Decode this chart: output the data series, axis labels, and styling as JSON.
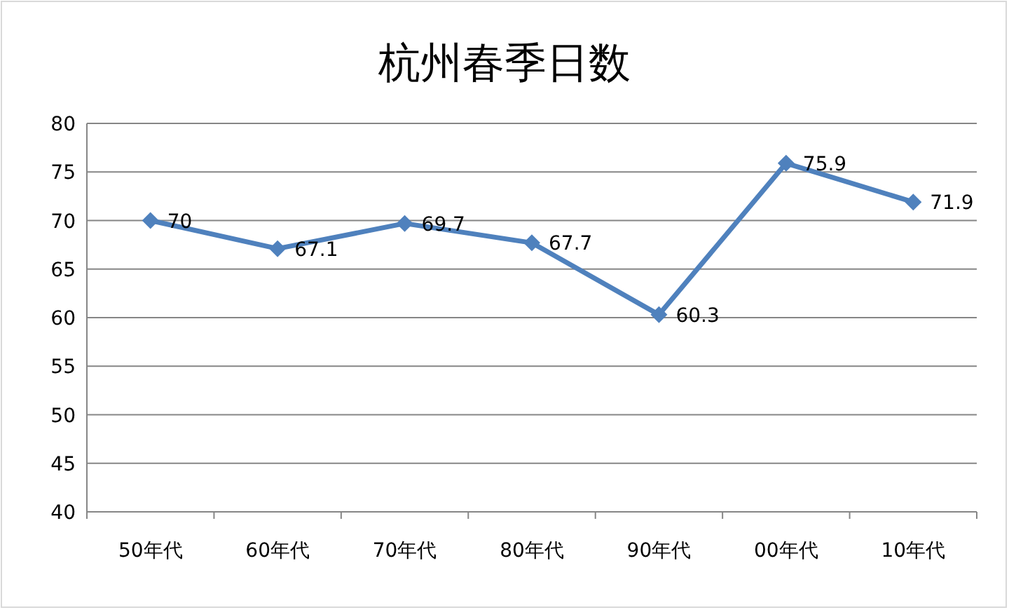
{
  "chart_data": {
    "type": "line",
    "title": "杭州春季日数",
    "categories": [
      "50年代",
      "60年代",
      "70年代",
      "80年代",
      "90年代",
      "00年代",
      "10年代"
    ],
    "values": [
      70,
      67.1,
      69.7,
      67.7,
      60.3,
      75.9,
      71.9
    ],
    "color": "#4f81bd",
    "ylim": [
      40,
      80
    ],
    "yticks": [
      40,
      45,
      50,
      55,
      60,
      65,
      70,
      75,
      80
    ],
    "grid": "y",
    "marker": "diamond",
    "line_style": "solid",
    "data_labels": true
  }
}
